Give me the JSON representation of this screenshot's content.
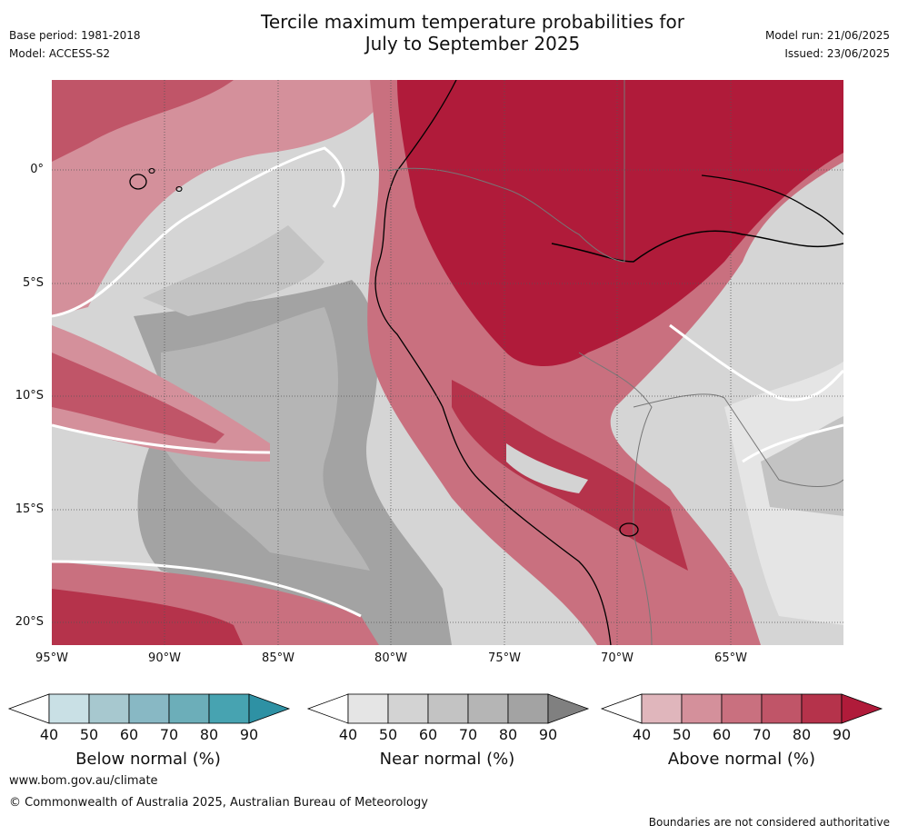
{
  "header": {
    "title_line1": "Tercile maximum temperature probabilities for",
    "title_line2": "July to September 2025",
    "base_period": "Base period: 1981-2018",
    "model": "Model: ACCESS-S2",
    "model_run": "Model run: 21/06/2025",
    "issued": "Issued: 23/06/2025"
  },
  "map": {
    "lat_labels": [
      "0°",
      "5°S",
      "10°S",
      "15°S",
      "20°S"
    ],
    "lon_labels": [
      "95°W",
      "90°W",
      "85°W",
      "80°W",
      "75°W",
      "70°W",
      "65°W"
    ],
    "ocean_color": "#d5d5d5"
  },
  "colorbars": [
    {
      "id": "below",
      "title": "Below normal (%)",
      "ticks": [
        "40",
        "50",
        "60",
        "70",
        "80",
        "90"
      ],
      "colors": [
        "#ffffff",
        "#c9e0e5",
        "#a7c8cf",
        "#88b8c4",
        "#6caeb9",
        "#47a3b1",
        "#2e91a4"
      ]
    },
    {
      "id": "near",
      "title": "Near normal (%)",
      "ticks": [
        "40",
        "50",
        "60",
        "70",
        "80",
        "90"
      ],
      "colors": [
        "#ffffff",
        "#e5e5e5",
        "#d3d3d3",
        "#c3c3c3",
        "#b5b5b5",
        "#a3a3a3",
        "#808080"
      ]
    },
    {
      "id": "above",
      "title": "Above normal (%)",
      "ticks": [
        "40",
        "50",
        "60",
        "70",
        "80",
        "90"
      ],
      "colors": [
        "#ffffff",
        "#e0b6bc",
        "#d4909b",
        "#c9707f",
        "#c05568",
        "#b5334b",
        "#b01b3a"
      ]
    }
  ],
  "footer": {
    "url": "www.bom.gov.au/climate",
    "copyright": "© Commonwealth of Australia 2025, Australian Bureau of Meteorology",
    "disclaimer": "Boundaries are not considered authoritative"
  }
}
